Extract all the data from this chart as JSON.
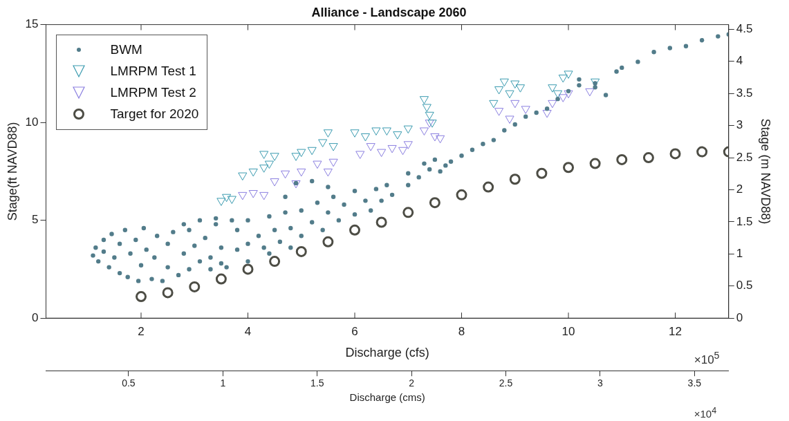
{
  "chart_data": {
    "type": "scatter",
    "title": "Alliance - Landscape 2060",
    "xlabel": "Discharge (cfs)",
    "x2label": "Discharge (cms)",
    "ylabel": "Stage(ft NAVD88)",
    "y2label": "Stage (m NAVD88)",
    "xlim": [
      0.22,
      13
    ],
    "xticks": [
      2,
      4,
      6,
      8,
      10,
      12
    ],
    "x2lim": [
      0.0623,
      3.6812
    ],
    "x2ticks": [
      0.5,
      1,
      1.5,
      2,
      2.5,
      3,
      3.5
    ],
    "ylim": [
      0,
      15
    ],
    "yticks": [
      0,
      5,
      10,
      15
    ],
    "y2lim": [
      0,
      4.572
    ],
    "y2ticks": [
      0,
      0.5,
      1,
      1.5,
      2,
      2.5,
      3,
      3.5,
      4,
      4.5
    ],
    "legend": "top left",
    "grid": false,
    "annotations": [
      "×10$^{5}$",
      "×10$^{4}$"
    ],
    "series": [
      {
        "name": "BWM",
        "color": "#527c8a",
        "marker": "circle",
        "x": [
          1.1,
          1.15,
          1.2,
          1.3,
          1.3,
          1.4,
          1.45,
          1.5,
          1.6,
          1.6,
          1.7,
          1.75,
          1.8,
          1.9,
          1.95,
          2.0,
          2.05,
          2.1,
          2.2,
          2.25,
          2.3,
          2.4,
          2.5,
          2.5,
          2.6,
          2.7,
          2.8,
          2.9,
          2.9,
          3.0,
          3.1,
          3.2,
          3.3,
          3.4,
          3.5,
          3.5,
          2.8,
          3.1,
          3.4,
          3.7,
          3.3,
          3.6,
          4.0,
          4.4,
          4.8,
          3.8,
          3.8,
          4.0,
          4.0,
          4.2,
          4.3,
          4.4,
          4.5,
          4.6,
          4.7,
          4.8,
          5.0,
          5.0,
          5.2,
          5.3,
          5.4,
          5.5,
          5.6,
          5.7,
          5.8,
          6.0,
          6.0,
          6.2,
          6.3,
          6.4,
          6.5,
          6.6,
          6.7,
          4.7,
          4.9,
          5.2,
          5.5,
          7.0,
          7.0,
          7.2,
          7.4,
          7.6,
          7.8,
          8.0,
          8.2,
          8.4,
          8.6,
          8.8,
          9.0,
          9.2,
          9.4,
          9.6,
          9.8,
          10.0,
          10.2,
          10.5,
          10.7,
          10.9,
          11.0,
          11.3,
          11.6,
          11.9,
          12.2,
          12.5,
          12.8,
          13.0,
          7.3,
          7.5,
          7.7,
          10.2,
          10.5
        ],
        "values": [
          3.2,
          3.6,
          2.9,
          4.0,
          3.4,
          2.6,
          4.3,
          3.1,
          2.3,
          3.8,
          4.5,
          2.1,
          3.3,
          4.0,
          1.9,
          2.7,
          4.6,
          3.5,
          2.0,
          3.1,
          4.2,
          1.9,
          2.6,
          3.8,
          4.4,
          2.2,
          3.3,
          2.5,
          4.5,
          3.7,
          2.9,
          4.1,
          3.1,
          4.8,
          3.6,
          2.8,
          4.8,
          5.0,
          5.1,
          5.0,
          2.5,
          2.6,
          2.9,
          3.3,
          3.6,
          3.5,
          4.5,
          3.8,
          5.0,
          4.2,
          3.6,
          5.2,
          4.5,
          3.9,
          5.4,
          4.6,
          4.2,
          5.5,
          4.9,
          5.9,
          4.5,
          5.4,
          6.2,
          5.0,
          5.8,
          5.3,
          6.5,
          6.0,
          5.5,
          6.6,
          6.0,
          6.8,
          6.3,
          6.2,
          6.9,
          7.0,
          6.7,
          6.8,
          7.4,
          7.2,
          7.6,
          7.5,
          8.0,
          8.3,
          8.6,
          8.9,
          9.1,
          9.6,
          9.9,
          10.3,
          10.5,
          10.7,
          11.2,
          11.6,
          11.9,
          11.8,
          11.4,
          12.6,
          12.8,
          13.1,
          13.6,
          13.8,
          13.9,
          14.2,
          14.4,
          14.5,
          7.9,
          8.1,
          7.8,
          12.2,
          12.0
        ]
      },
      {
        "name": "LMRPM Test 1",
        "color": "#3b9bb0",
        "marker": "triangle",
        "x": [
          3.5,
          3.6,
          3.7,
          3.9,
          4.1,
          4.3,
          4.4,
          4.3,
          4.5,
          4.9,
          5.0,
          5.2,
          5.4,
          5.5,
          5.6,
          6.0,
          6.2,
          6.4,
          6.6,
          6.8,
          7.0,
          7.3,
          7.35,
          7.4,
          7.45,
          8.7,
          8.8,
          8.9,
          9.0,
          9.1,
          8.6,
          9.7,
          9.9,
          10.0,
          9.8,
          10.5
        ],
        "values": [
          6.0,
          6.2,
          6.1,
          7.3,
          7.5,
          7.7,
          7.9,
          8.4,
          8.3,
          8.3,
          8.5,
          8.6,
          9.0,
          9.5,
          8.8,
          9.5,
          9.3,
          9.6,
          9.6,
          9.4,
          9.7,
          11.2,
          10.8,
          10.4,
          10.0,
          11.7,
          12.1,
          11.5,
          12.0,
          11.8,
          11.0,
          11.8,
          12.3,
          12.5,
          11.5,
          12.1
        ]
      },
      {
        "name": "LMRPM Test 2",
        "color": "#8b7fe0",
        "marker": "triangle",
        "x": [
          3.9,
          4.1,
          4.3,
          4.5,
          4.7,
          4.9,
          5.0,
          5.3,
          5.5,
          5.6,
          6.1,
          6.3,
          6.5,
          6.7,
          6.9,
          7.0,
          7.3,
          7.4,
          7.5,
          7.6,
          8.7,
          8.9,
          9.0,
          9.2,
          9.6,
          9.7,
          9.9,
          10.0,
          10.4
        ],
        "values": [
          6.3,
          6.4,
          6.3,
          7.0,
          7.4,
          6.9,
          7.5,
          7.9,
          7.5,
          8.0,
          8.4,
          8.8,
          8.5,
          8.7,
          8.6,
          8.9,
          9.6,
          10.0,
          9.3,
          9.2,
          10.6,
          10.2,
          11.0,
          10.7,
          10.5,
          11.0,
          11.3,
          11.5,
          11.6
        ]
      },
      {
        "name": "Target for 2020",
        "color": "#4d4d45",
        "marker": "circle",
        "x": [
          2.0,
          2.5,
          3.0,
          3.5,
          4.0,
          4.5,
          5.0,
          5.5,
          6.0,
          6.5,
          7.0,
          7.5,
          8.0,
          8.5,
          9.0,
          9.5,
          10.0,
          10.5,
          11.0,
          11.5,
          12.0,
          12.5,
          13.0
        ],
        "values": [
          1.1,
          1.3,
          1.6,
          2.0,
          2.5,
          2.9,
          3.4,
          3.9,
          4.5,
          4.9,
          5.4,
          5.9,
          6.3,
          6.7,
          7.1,
          7.4,
          7.7,
          7.9,
          8.1,
          8.2,
          8.4,
          8.5,
          8.5
        ]
      }
    ]
  }
}
